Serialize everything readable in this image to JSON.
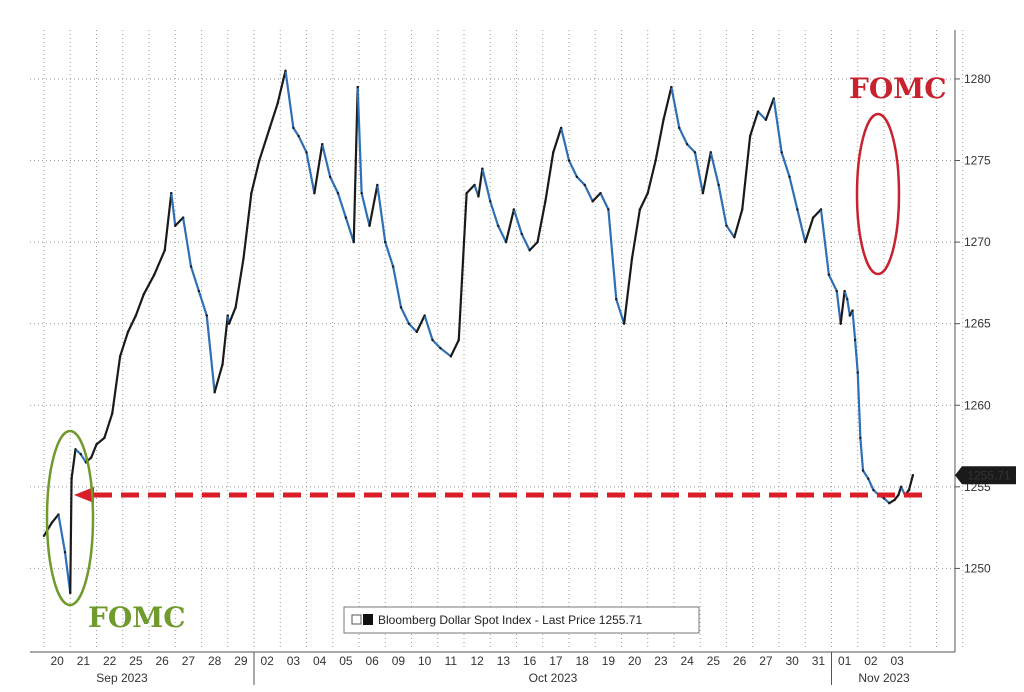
{
  "chart_data": {
    "type": "line",
    "legend": {
      "label": "Bloomberg Dollar Spot Index - Last Price 1255.71",
      "placement": "bottom-center"
    },
    "last_value_label": "1255.71",
    "y_axis": {
      "ticks": [
        "1280",
        "1275",
        "1270",
        "1265",
        "1260",
        "1255",
        "1250"
      ],
      "ylim": [
        1245,
        1283
      ],
      "position": "right",
      "grid": true
    },
    "x_axis": {
      "day_labels": [
        "20",
        "21",
        "22",
        "25",
        "26",
        "27",
        "28",
        "29",
        "02",
        "03",
        "04",
        "05",
        "06",
        "09",
        "10",
        "11",
        "12",
        "13",
        "16",
        "17",
        "18",
        "19",
        "20",
        "23",
        "24",
        "25",
        "26",
        "27",
        "30",
        "31",
        "01",
        "02",
        "03"
      ],
      "month_labels": [
        "Sep 2023",
        "Oct 2023",
        "Nov 2023"
      ],
      "grid": true
    },
    "annotations": {
      "left_fomc": "FOMC",
      "right_fomc": "FOMC",
      "reference_level": 1254.5
    },
    "colors": {
      "line_up": "#1a1a1a",
      "line_down": "#2f6fb5",
      "left_fomc": "#6f9a2c",
      "right_fomc": "#c8222e",
      "reference_line": "#d91e2a",
      "grid": "#9a9a9a"
    },
    "series": [
      {
        "name": "Bloomberg Dollar Spot Index - Last Price",
        "x": [
          0,
          0.3,
          0.55,
          0.8,
          1.0,
          1.05,
          1.2,
          1.4,
          1.6,
          1.8,
          2.0,
          2.3,
          2.6,
          2.9,
          3.2,
          3.5,
          3.8,
          4.2,
          4.6,
          4.85,
          5.0,
          5.3,
          5.6,
          5.9,
          6.2,
          6.5,
          6.8,
          7.0,
          7.05,
          7.3,
          7.6,
          7.9,
          8.2,
          8.6,
          8.9,
          9.2,
          9.5,
          9.7,
          10.0,
          10.3,
          10.6,
          10.9,
          11.2,
          11.5,
          11.8,
          11.95,
          12.1,
          12.4,
          12.7,
          13.0,
          13.3,
          13.6,
          13.9,
          14.2,
          14.5,
          14.8,
          15.1,
          15.5,
          15.8,
          16.1,
          16.4,
          16.55,
          16.7,
          17.0,
          17.3,
          17.6,
          17.9,
          18.2,
          18.5,
          18.8,
          19.1,
          19.4,
          19.7,
          20.0,
          20.3,
          20.6,
          20.9,
          21.2,
          21.5,
          21.8,
          22.1,
          22.4,
          22.7,
          23.0,
          23.3,
          23.6,
          23.9,
          24.2,
          24.5,
          24.8,
          25.1,
          25.4,
          25.7,
          26.0,
          26.3,
          26.6,
          26.9,
          27.2,
          27.5,
          27.8,
          28.1,
          28.4,
          28.7,
          29.0,
          29.3,
          29.6,
          29.9,
          30.2,
          30.35,
          30.5,
          30.6,
          30.7,
          30.8,
          30.9,
          31.0,
          31.1,
          31.2,
          31.4,
          31.6,
          31.8,
          32.0,
          32.2,
          32.4,
          32.55,
          32.65,
          32.8,
          32.95,
          33.1
        ],
        "values": [
          1252.0,
          1252.8,
          1253.3,
          1251.0,
          1248.5,
          1255.5,
          1257.3,
          1257.0,
          1256.5,
          1256.8,
          1257.6,
          1258.0,
          1259.5,
          1263.0,
          1264.5,
          1265.5,
          1266.8,
          1268.0,
          1269.5,
          1273.0,
          1271.0,
          1271.5,
          1268.5,
          1267.0,
          1265.5,
          1260.8,
          1262.5,
          1265.5,
          1265.0,
          1266.0,
          1269.0,
          1273.0,
          1275.0,
          1277.0,
          1278.5,
          1280.5,
          1277.0,
          1276.5,
          1275.5,
          1273.0,
          1276.0,
          1274.0,
          1273.0,
          1271.5,
          1270.0,
          1279.5,
          1273.0,
          1271.0,
          1273.5,
          1270.0,
          1268.5,
          1266.0,
          1265.0,
          1264.5,
          1265.5,
          1264.0,
          1263.5,
          1263.0,
          1264.0,
          1273.0,
          1273.5,
          1272.8,
          1274.5,
          1272.5,
          1271.0,
          1270.0,
          1272.0,
          1270.5,
          1269.5,
          1270.0,
          1272.5,
          1275.5,
          1277.0,
          1275.0,
          1274.0,
          1273.5,
          1272.5,
          1273.0,
          1272.0,
          1266.5,
          1265.0,
          1269.0,
          1272.0,
          1273.0,
          1275.0,
          1277.5,
          1279.5,
          1277.0,
          1276.0,
          1275.5,
          1273.0,
          1275.5,
          1273.5,
          1271.0,
          1270.3,
          1272.0,
          1276.5,
          1278.0,
          1277.5,
          1278.8,
          1275.5,
          1274.0,
          1272.0,
          1270.0,
          1271.5,
          1272.0,
          1268.0,
          1267.0,
          1265.0,
          1267.0,
          1266.5,
          1265.5,
          1265.8,
          1264.0,
          1262.0,
          1258.0,
          1256.0,
          1255.5,
          1254.8,
          1254.5,
          1254.3,
          1254.0,
          1254.2,
          1254.5,
          1255.0,
          1254.5,
          1254.8,
          1255.71
        ]
      }
    ]
  }
}
